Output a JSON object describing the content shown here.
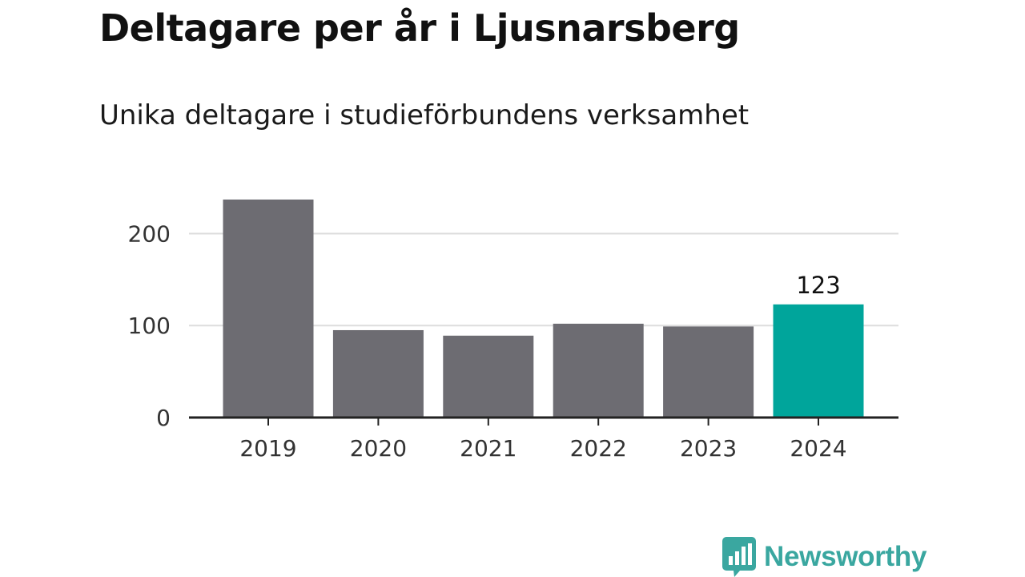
{
  "header": {
    "title": "Deltagare per år i Ljusnarsberg",
    "subtitle": "Unika deltagare i studieförbundens verksamhet"
  },
  "brand": {
    "name": "Newsworthy",
    "color": "#3aa7a0",
    "icon": "bar-chart-speech-bubble-icon"
  },
  "colors": {
    "bar_default": "#6d6c72",
    "bar_highlight": "#00a59b",
    "grid": "#dddddd",
    "axis": "#222222"
  },
  "chart_data": {
    "type": "bar",
    "categories": [
      "2019",
      "2020",
      "2021",
      "2022",
      "2023",
      "2024"
    ],
    "values": [
      237,
      95,
      89,
      102,
      99,
      123
    ],
    "highlight_index": 5,
    "data_labels": {
      "5": "123"
    },
    "yticks": [
      0,
      100,
      200
    ],
    "ylim": [
      0,
      237
    ],
    "grid": true,
    "legend": "none"
  }
}
